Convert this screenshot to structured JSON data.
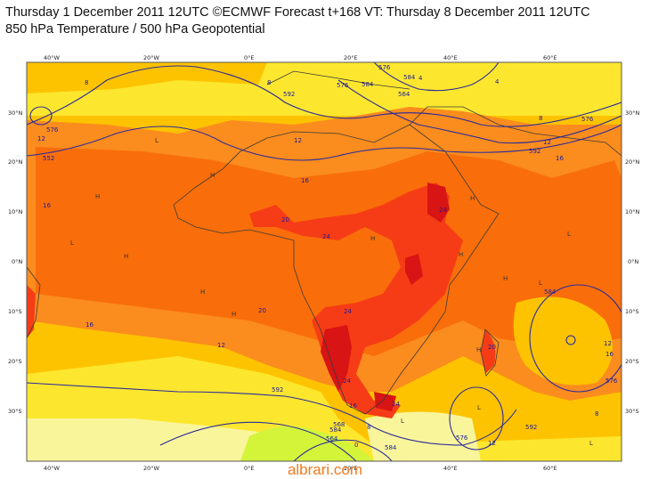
{
  "header": {
    "line1": "Thursday 1 December 2011 12UTC ©ECMWF Forecast t+168 VT: Thursday 8 December 2011 12UTC",
    "line2": "850 hPa Temperature / 500 hPa Geopotential"
  },
  "axes": {
    "lon_top": [
      "40°W",
      "20°W",
      "0°E",
      "20°E",
      "40°E",
      "60°E"
    ],
    "lon_bottom": [
      "40°W",
      "20°W",
      "0°E",
      "20°E",
      "40°E",
      "60°E"
    ],
    "lat_left": [
      "30°N",
      "20°N",
      "10°N",
      "0°N",
      "10°S",
      "20°S",
      "30°S"
    ],
    "lat_right": [
      "30°N",
      "20°N",
      "10°N",
      "0°N",
      "10°S",
      "20°S",
      "30°S"
    ]
  },
  "temperature_labels": [
    "8",
    "8",
    "12",
    "12",
    "16",
    "16",
    "16",
    "20",
    "20",
    "24",
    "24",
    "24",
    "24",
    "24",
    "16",
    "12",
    "8",
    "4",
    "12",
    "8",
    "16",
    "12",
    "0",
    "4",
    "8",
    "12",
    "16",
    "20",
    "16",
    "12",
    "8"
  ],
  "geopotential_labels": [
    "576",
    "552",
    "592",
    "576",
    "584",
    "576",
    "564",
    "584",
    "592",
    "576",
    "584",
    "592",
    "564",
    "592",
    "584",
    "576",
    "584",
    "568",
    "576"
  ],
  "colors": {
    "pale_yellow": "#f9f59b",
    "yellow": "#fde72e",
    "orange_yellow": "#fdc300",
    "orange": "#fb8c1e",
    "deep_orange": "#f96e0a",
    "red": "#f63c16",
    "dark_red": "#d81414",
    "green_yellow": "#d4f43a",
    "contour": "#2b2b9a"
  },
  "watermark": "albrari.com"
}
